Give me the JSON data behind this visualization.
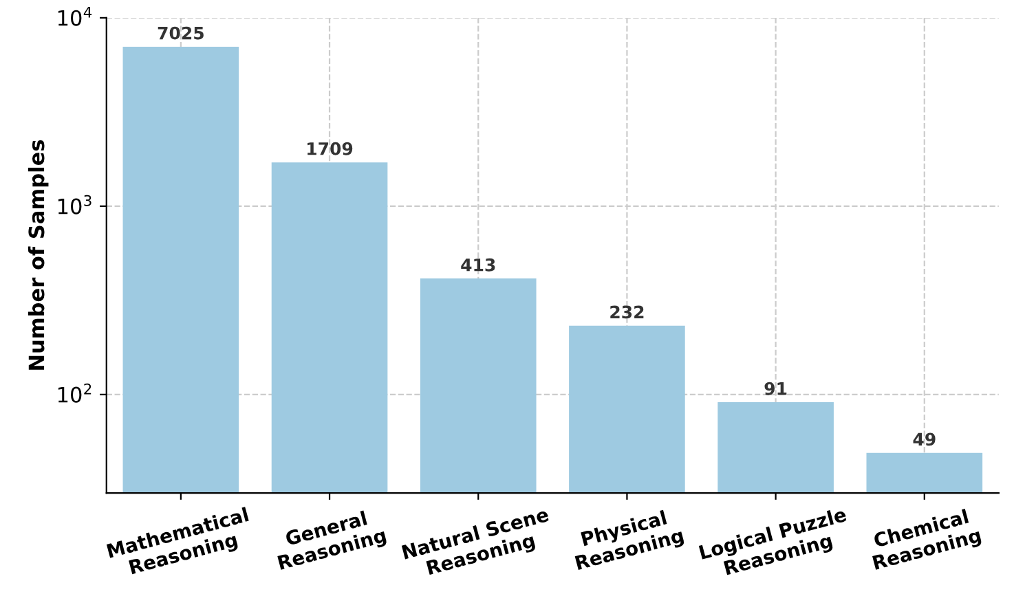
{
  "chart_data": {
    "type": "bar",
    "ylabel": "Number of Samples",
    "categories": [
      "Mathematical\nReasoning",
      "General\nReasoning",
      "Natural Scene\nReasoning",
      "Physical\nReasoning",
      "Logical Puzzle\nReasoning",
      "Chemical\nReasoning"
    ],
    "values": [
      7025,
      1709,
      413,
      232,
      91,
      49
    ],
    "color": "#9ecae1",
    "log": true,
    "ylim": [
      30,
      10000
    ],
    "yticks": [
      {
        "value": 100,
        "label": "10$^{2}$"
      },
      {
        "value": 1000,
        "label": "10$^{3}$"
      },
      {
        "value": 10000,
        "label": "10$^{4}$"
      }
    ],
    "grid": true,
    "data_labels": true
  }
}
